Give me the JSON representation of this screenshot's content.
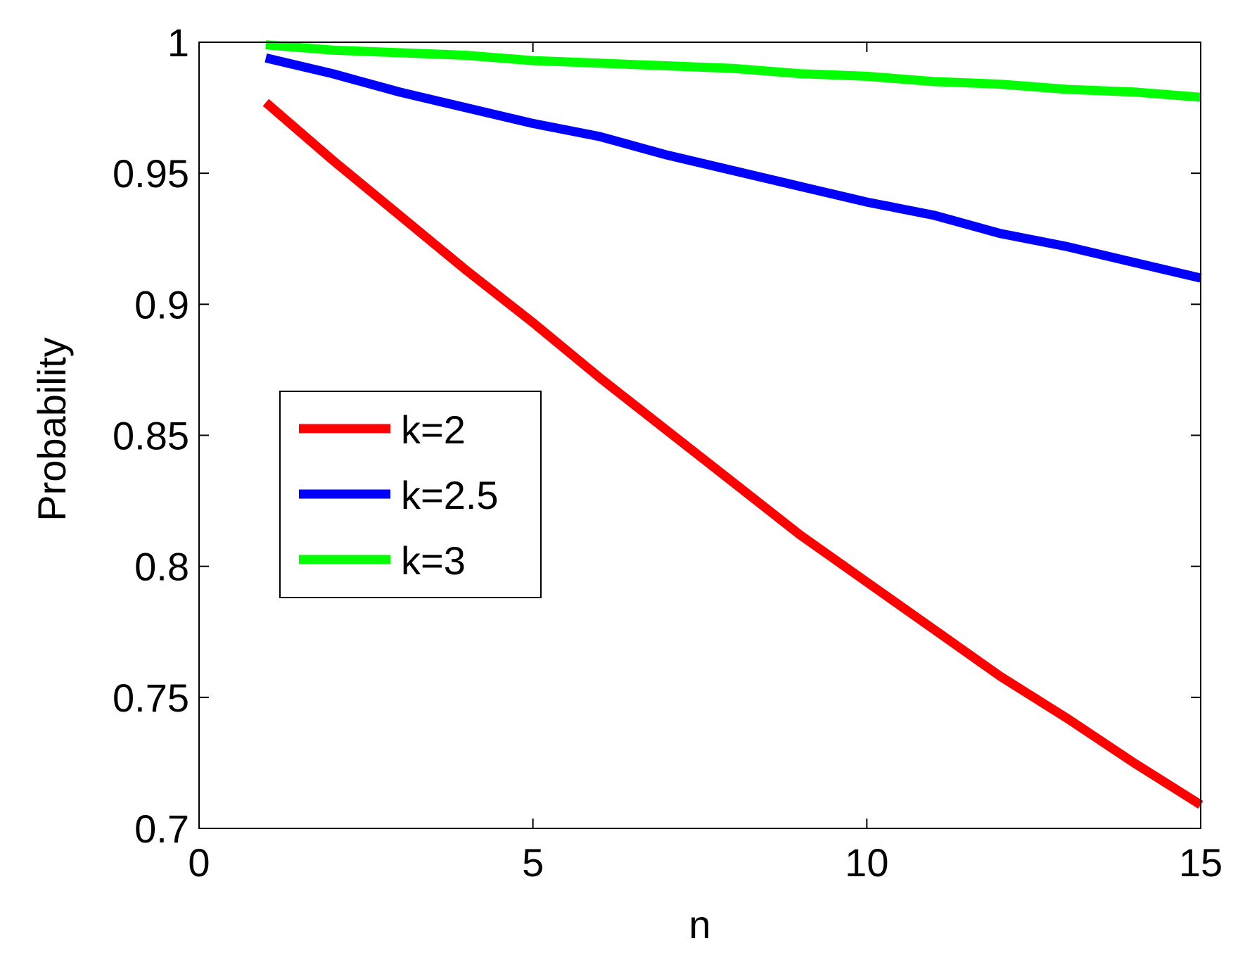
{
  "chart_data": {
    "type": "line",
    "title": "",
    "xlabel": "n",
    "ylabel": "Probability",
    "xlim": [
      0,
      15
    ],
    "ylim": [
      0.7,
      1
    ],
    "xticks": [
      0,
      5,
      10,
      15
    ],
    "xtick_labels": [
      "0",
      "5",
      "10",
      "15"
    ],
    "yticks": [
      0.7,
      0.75,
      0.8,
      0.85,
      0.9,
      0.95,
      1
    ],
    "ytick_labels": [
      "0.7",
      "0.75",
      "0.8",
      "0.85",
      "0.9",
      "0.95",
      "1"
    ],
    "grid": false,
    "legend_position": "center-left",
    "x": [
      1,
      2,
      3,
      4,
      5,
      6,
      7,
      8,
      9,
      10,
      11,
      12,
      13,
      14,
      15
    ],
    "series": [
      {
        "name": "k=2",
        "color": "#ff0000",
        "values": [
          0.977,
          0.955,
          0.934,
          0.913,
          0.893,
          0.872,
          0.852,
          0.832,
          0.812,
          0.794,
          0.776,
          0.758,
          0.742,
          0.725,
          0.709
        ]
      },
      {
        "name": "k=2.5",
        "color": "#0000ff",
        "values": [
          0.994,
          0.988,
          0.981,
          0.975,
          0.969,
          0.964,
          0.957,
          0.951,
          0.945,
          0.939,
          0.934,
          0.927,
          0.922,
          0.916,
          0.91
        ]
      },
      {
        "name": "k=3",
        "color": "#00ff00",
        "values": [
          0.999,
          0.997,
          0.996,
          0.995,
          0.993,
          0.992,
          0.991,
          0.99,
          0.988,
          0.987,
          0.985,
          0.984,
          0.982,
          0.981,
          0.979
        ]
      }
    ]
  }
}
